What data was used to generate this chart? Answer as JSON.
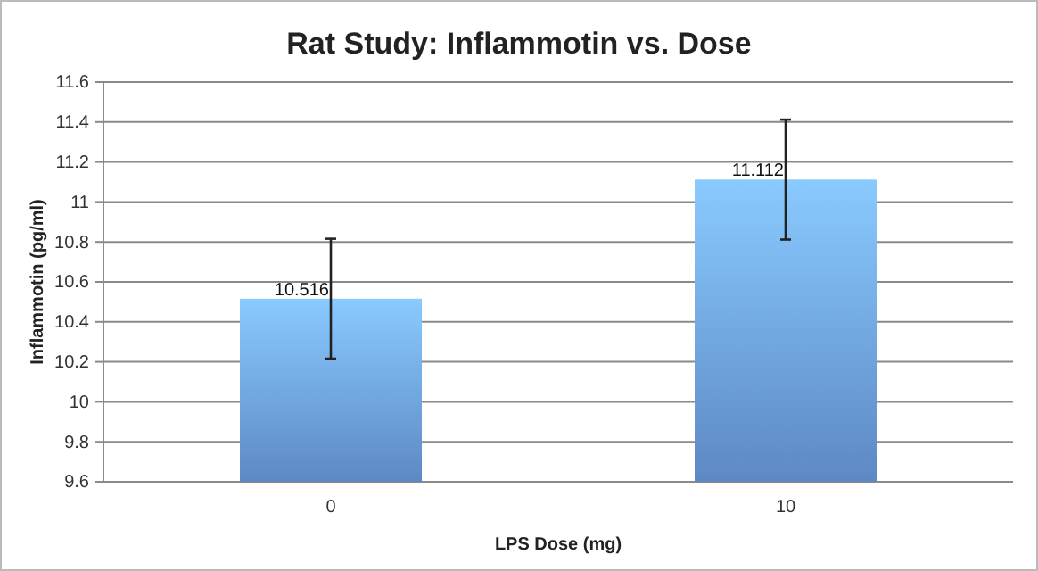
{
  "chart_data": {
    "type": "bar",
    "title": "Rat Study: Inflammotin vs. Dose",
    "xlabel": "LPS Dose (mg)",
    "ylabel": "Inflammotin (pg/ml)",
    "categories": [
      "0",
      "10"
    ],
    "values": [
      10.516,
      11.112
    ],
    "errors": [
      0.3,
      0.3
    ],
    "color": "#6fa3ea",
    "ylim": [
      9.6,
      11.6
    ],
    "yticks": [
      9.6,
      9.8,
      10,
      10.2,
      10.4,
      10.6,
      10.8,
      11,
      11.2,
      11.4,
      11.6
    ],
    "grid": "y",
    "data_labels": true
  }
}
